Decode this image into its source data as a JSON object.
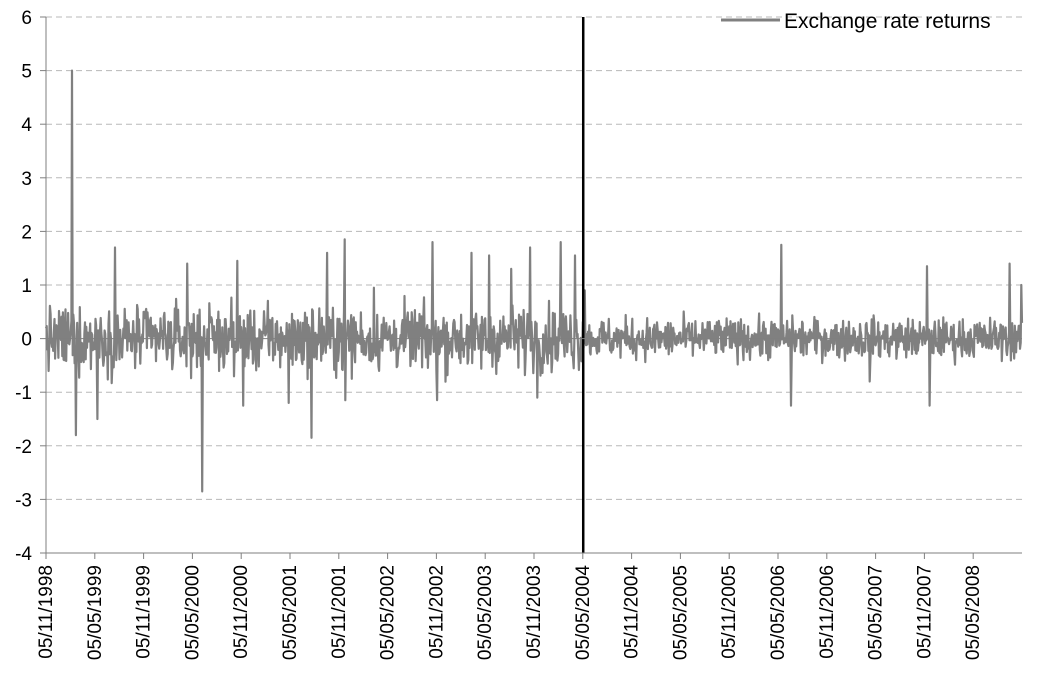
{
  "chart_data": {
    "type": "line",
    "title": "",
    "xlabel": "",
    "ylabel": "",
    "ylim": [
      -4,
      6
    ],
    "y_ticks": [
      -4,
      -3,
      -2,
      -1,
      0,
      1,
      2,
      3,
      4,
      5,
      6
    ],
    "x_tick_labels": [
      "05/11/1998",
      "05/05/1999",
      "05/11/1999",
      "05/05/2000",
      "05/11/2000",
      "05/05/2001",
      "05/11/2001",
      "05/05/2002",
      "05/11/2002",
      "05/05/2003",
      "05/11/2003",
      "05/05/2004",
      "05/11/2004",
      "05/05/2005",
      "05/11/2005",
      "05/05/2006",
      "05/11/2006",
      "05/05/2007",
      "05/11/2007",
      "05/05/2008"
    ],
    "x_range": [
      "1998-11-05",
      "2008-10-31"
    ],
    "grid": "horizontal dashed",
    "legend_position": "top-right",
    "series": [
      {
        "name": "Exchange rate returns",
        "color": "#808080",
        "notable_points": [
          {
            "x": "1999-02-10",
            "y": 5.0
          },
          {
            "x": "1999-02-25",
            "y": -1.8
          },
          {
            "x": "1999-07-20",
            "y": 1.7
          },
          {
            "x": "1999-05-15",
            "y": -1.5
          },
          {
            "x": "2000-04-15",
            "y": 1.4
          },
          {
            "x": "2000-06-10",
            "y": -2.85
          },
          {
            "x": "2000-10-20",
            "y": 1.45
          },
          {
            "x": "2000-11-10",
            "y": -1.25
          },
          {
            "x": "2001-05-01",
            "y": -1.2
          },
          {
            "x": "2001-07-25",
            "y": -1.85
          },
          {
            "x": "2001-09-20",
            "y": 1.6
          },
          {
            "x": "2001-11-25",
            "y": 1.85
          },
          {
            "x": "2001-11-28",
            "y": -1.15
          },
          {
            "x": "2002-03-15",
            "y": 0.95
          },
          {
            "x": "2002-10-20",
            "y": 1.8
          },
          {
            "x": "2002-11-05",
            "y": -1.15
          },
          {
            "x": "2003-03-15",
            "y": 1.6
          },
          {
            "x": "2003-05-20",
            "y": 1.55
          },
          {
            "x": "2003-08-10",
            "y": 1.3
          },
          {
            "x": "2003-10-20",
            "y": 1.7
          },
          {
            "x": "2003-11-15",
            "y": -1.1
          },
          {
            "x": "2004-02-10",
            "y": 1.8
          },
          {
            "x": "2004-04-05",
            "y": 1.55
          },
          {
            "x": "2004-05-10",
            "y": 0.9
          },
          {
            "x": "2006-05-15",
            "y": 1.75
          },
          {
            "x": "2006-06-20",
            "y": -1.25
          },
          {
            "x": "2007-04-10",
            "y": -0.8
          },
          {
            "x": "2007-11-10",
            "y": 1.35
          },
          {
            "x": "2007-11-20",
            "y": -1.25
          },
          {
            "x": "2008-09-15",
            "y": 1.4
          },
          {
            "x": "2008-10-28",
            "y": 1.0
          }
        ],
        "volatility_regimes": [
          {
            "from": "1998-11-05",
            "to": "2004-05-05",
            "typical_amplitude": 0.55
          },
          {
            "from": "2004-05-05",
            "to": "2008-10-31",
            "typical_amplitude": 0.35
          }
        ]
      }
    ],
    "vertical_marker": {
      "x": "2004-05-05",
      "color": "#000000"
    }
  }
}
